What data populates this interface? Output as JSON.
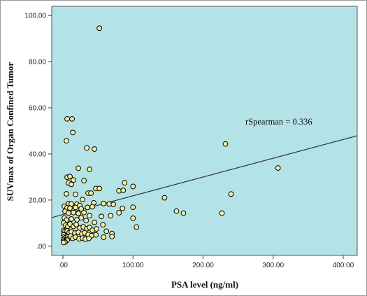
{
  "chart_data": {
    "type": "scatter",
    "title": "",
    "xlabel": "PSA level (ng/ml)",
    "ylabel": "SUVmax of Organ Confined Tumor",
    "xlim": [
      -16,
      420
    ],
    "ylim": [
      -4,
      104
    ],
    "xticks": [
      ".00",
      "100.00",
      "200.00",
      "300.00",
      "400.00"
    ],
    "yticks": [
      ".00",
      "20.00",
      "40.00",
      "60.00",
      "80.00",
      "100.00"
    ],
    "xtick_values": [
      0,
      100,
      200,
      300,
      400
    ],
    "ytick_values": [
      0,
      20,
      40,
      60,
      80,
      100
    ],
    "grid": false,
    "background_color": "#b4e3e7",
    "marker_fill": "#f3ef9e",
    "marker_edge": "#000000",
    "annotation": "rSpearman = 0.336",
    "fit_line": {
      "x": [
        -16,
        420
      ],
      "y": [
        12.4,
        47.9
      ]
    },
    "points": [
      [
        52,
        94.5
      ],
      [
        6,
        55.2
      ],
      [
        13,
        55.2
      ],
      [
        14,
        49.3
      ],
      [
        5,
        45.7
      ],
      [
        34,
        42.6
      ],
      [
        45,
        42.1
      ],
      [
        232,
        44.3
      ],
      [
        38,
        33.3
      ],
      [
        22,
        33.8
      ],
      [
        6,
        29.9
      ],
      [
        10,
        30.2
      ],
      [
        15,
        28.7
      ],
      [
        8,
        27.4
      ],
      [
        12,
        26.8
      ],
      [
        30,
        28.4
      ],
      [
        88,
        27.5
      ],
      [
        100,
        25.9
      ],
      [
        47,
        25.0
      ],
      [
        52,
        25.0
      ],
      [
        80,
        24.0
      ],
      [
        86,
        24.2
      ],
      [
        36,
        23.0
      ],
      [
        40,
        23.0
      ],
      [
        5,
        22.7
      ],
      [
        18,
        22.5
      ],
      [
        240,
        22.6
      ],
      [
        307,
        33.9
      ],
      [
        145,
        21.0
      ],
      [
        28,
        20.2
      ],
      [
        44,
        18.8
      ],
      [
        58,
        18.5
      ],
      [
        66,
        18.3
      ],
      [
        72,
        18.1
      ],
      [
        8,
        18.4
      ],
      [
        12,
        18.3
      ],
      [
        20,
        18.2
      ],
      [
        24,
        17.6
      ],
      [
        2,
        17.3
      ],
      [
        6,
        16.7
      ],
      [
        10,
        16.5
      ],
      [
        18,
        16.8
      ],
      [
        26,
        16.2
      ],
      [
        35,
        16.8
      ],
      [
        42,
        17.1
      ],
      [
        100,
        16.9
      ],
      [
        85,
        16.4
      ],
      [
        162,
        15.2
      ],
      [
        172,
        14.3
      ],
      [
        227,
        14.3
      ],
      [
        80,
        14.5
      ],
      [
        3,
        15.1
      ],
      [
        8,
        14.4
      ],
      [
        15,
        14.6
      ],
      [
        22,
        14.2
      ],
      [
        30,
        14.6
      ],
      [
        38,
        13.2
      ],
      [
        55,
        12.9
      ],
      [
        68,
        13.2
      ],
      [
        100,
        12.1
      ],
      [
        105,
        8.3
      ],
      [
        2,
        12.2
      ],
      [
        5,
        11.3
      ],
      [
        12,
        11.8
      ],
      [
        20,
        11.5
      ],
      [
        26,
        12.3
      ],
      [
        33,
        11.1
      ],
      [
        45,
        10.3
      ],
      [
        57,
        9.3
      ],
      [
        62,
        6.5
      ],
      [
        70,
        5.5
      ],
      [
        1,
        10.1
      ],
      [
        4,
        9.1
      ],
      [
        7,
        8.6
      ],
      [
        10,
        9.6
      ],
      [
        15,
        8.6
      ],
      [
        19,
        9.4
      ],
      [
        24,
        7.9
      ],
      [
        29,
        8.4
      ],
      [
        34,
        7.6
      ],
      [
        38,
        8.1
      ],
      [
        42,
        6.9
      ],
      [
        48,
        7.5
      ],
      [
        1,
        6.8
      ],
      [
        3,
        6.4
      ],
      [
        6,
        6.6
      ],
      [
        9,
        5.9
      ],
      [
        12,
        6.2
      ],
      [
        17,
        5.7
      ],
      [
        22,
        6.0
      ],
      [
        27,
        5.3
      ],
      [
        31,
        5.8
      ],
      [
        36,
        5.0
      ],
      [
        41,
        4.6
      ],
      [
        47,
        4.9
      ],
      [
        58,
        3.9
      ],
      [
        70,
        4.2
      ],
      [
        1,
        4.9
      ],
      [
        2,
        4.2
      ],
      [
        3,
        3.6
      ],
      [
        5,
        3.2
      ],
      [
        7,
        4.0
      ],
      [
        9,
        3.6
      ],
      [
        11,
        4.4
      ],
      [
        14,
        3.4
      ],
      [
        18,
        3.9
      ],
      [
        23,
        3.2
      ],
      [
        28,
        3.5
      ],
      [
        32,
        3.0
      ],
      [
        37,
        3.4
      ],
      [
        1,
        2.9
      ],
      [
        2,
        2.4
      ],
      [
        4,
        2.2
      ],
      [
        6,
        2.6
      ],
      [
        3,
        1.8
      ],
      [
        1,
        1.6
      ]
    ]
  }
}
